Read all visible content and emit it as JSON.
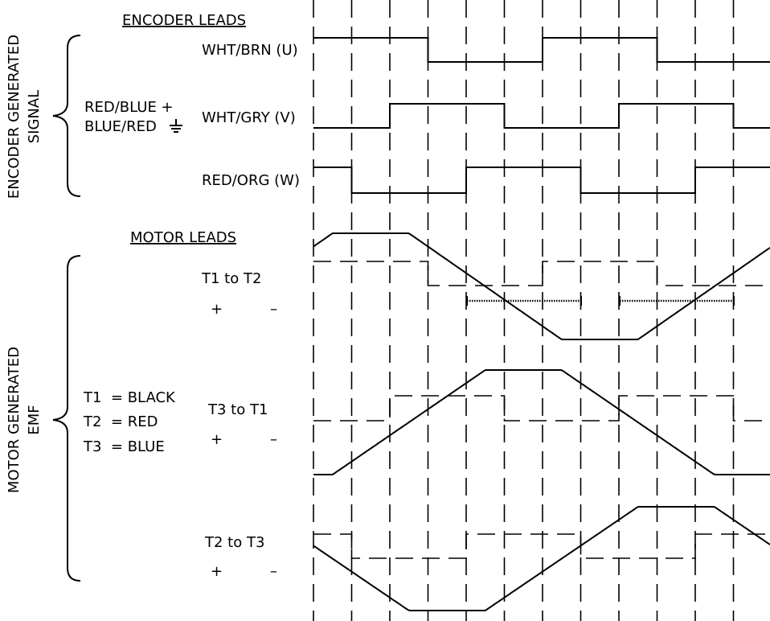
{
  "encoder": {
    "header": "ENCODER LEADS",
    "group_label_line1": "ENCODER GENERATED",
    "group_label_line2": "SIGNAL",
    "power_line1": "RED/BLUE +",
    "power_line2": "BLUE/RED",
    "signals": [
      {
        "name": "WHT/BRN (U)",
        "levels": [
          1,
          1,
          1,
          0,
          0,
          0,
          1,
          1,
          1,
          0,
          0,
          0
        ]
      },
      {
        "name": "WHT/GRY (V)",
        "levels": [
          0,
          0,
          1,
          1,
          1,
          0,
          0,
          0,
          1,
          1,
          1,
          0
        ]
      },
      {
        "name": "RED/ORG (W)",
        "levels": [
          1,
          0,
          0,
          0,
          1,
          1,
          1,
          0,
          0,
          0,
          1,
          1
        ]
      }
    ]
  },
  "motor": {
    "header": "MOTOR LEADS",
    "group_label_line1": "MOTOR GENERATED",
    "group_label_line2": "EMF",
    "legend": [
      "T1  = BLACK",
      "T2  = RED",
      "T3  = BLUE"
    ],
    "plus": "+",
    "minus": "–",
    "channels": [
      {
        "name": "T1 to T2"
      },
      {
        "name": "T3 to T1"
      },
      {
        "name": "T2 to T3"
      }
    ]
  }
}
